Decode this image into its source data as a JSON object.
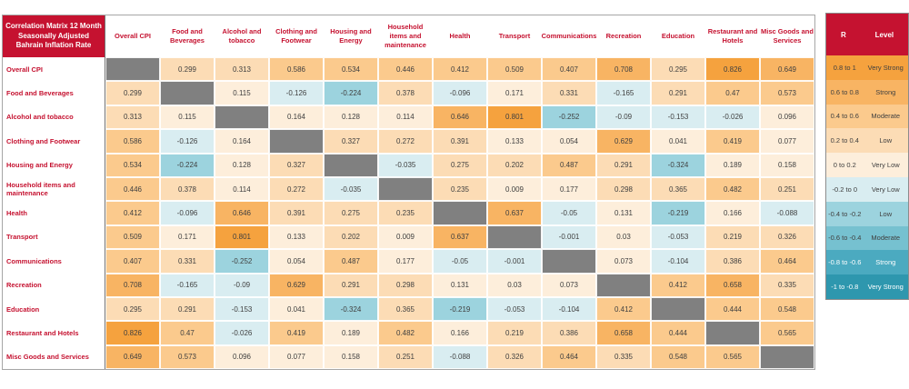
{
  "chart_data": {
    "type": "heatmap",
    "title": "Correlation Matrix 12 Month Seasonally Adjusted Bahrain Inflation Rate",
    "categories": [
      "Overall CPI",
      "Food and Beverages",
      "Alcohol and tobacco",
      "Clothing and Footwear",
      "Housing and Energy",
      "Household items and maintenance",
      "Health",
      "Transport",
      "Communications",
      "Recreation",
      "Education",
      "Restaurant and Hotels",
      "Misc Goods and Services"
    ],
    "matrix": [
      [
        null,
        0.299,
        0.313,
        0.586,
        0.534,
        0.446,
        0.412,
        0.509,
        0.407,
        0.708,
        0.295,
        0.826,
        0.649
      ],
      [
        0.299,
        null,
        0.115,
        -0.126,
        -0.224,
        0.378,
        -0.096,
        0.171,
        0.331,
        -0.165,
        0.291,
        0.47,
        0.573
      ],
      [
        0.313,
        0.115,
        null,
        0.164,
        0.128,
        0.114,
        0.646,
        0.801,
        -0.252,
        -0.09,
        -0.153,
        -0.026,
        0.096
      ],
      [
        0.586,
        -0.126,
        0.164,
        null,
        0.327,
        0.272,
        0.391,
        0.133,
        0.054,
        0.629,
        0.041,
        0.419,
        0.077
      ],
      [
        0.534,
        -0.224,
        0.128,
        0.327,
        null,
        -0.035,
        0.275,
        0.202,
        0.487,
        0.291,
        -0.324,
        0.189,
        0.158
      ],
      [
        0.446,
        0.378,
        0.114,
        0.272,
        -0.035,
        null,
        0.235,
        0.009,
        0.177,
        0.298,
        0.365,
        0.482,
        0.251
      ],
      [
        0.412,
        -0.096,
        0.646,
        0.391,
        0.275,
        0.235,
        null,
        0.637,
        -0.05,
        0.131,
        -0.219,
        0.166,
        -0.088
      ],
      [
        0.509,
        0.171,
        0.801,
        0.133,
        0.202,
        0.009,
        0.637,
        null,
        -0.001,
        0.03,
        -0.053,
        0.219,
        0.326
      ],
      [
        0.407,
        0.331,
        -0.252,
        0.054,
        0.487,
        0.177,
        -0.05,
        -0.001,
        null,
        0.073,
        -0.104,
        0.386,
        0.464
      ],
      [
        0.708,
        -0.165,
        -0.09,
        0.629,
        0.291,
        0.298,
        0.131,
        0.03,
        0.073,
        null,
        0.412,
        0.658,
        0.335
      ],
      [
        0.295,
        0.291,
        -0.153,
        0.041,
        -0.324,
        0.365,
        -0.219,
        -0.053,
        -0.104,
        0.412,
        null,
        0.444,
        0.548
      ],
      [
        0.826,
        0.47,
        -0.026,
        0.419,
        0.189,
        0.482,
        0.166,
        0.219,
        0.386,
        0.658,
        0.444,
        null,
        0.565
      ],
      [
        0.649,
        0.573,
        0.096,
        0.077,
        0.158,
        0.251,
        -0.088,
        0.326,
        0.464,
        0.335,
        0.548,
        0.565,
        null
      ]
    ],
    "legend": {
      "headers": [
        "R",
        "Level"
      ],
      "rows": [
        {
          "range": "0.8 to 1",
          "level": "Very Strong",
          "tier": "pos5"
        },
        {
          "range": "0.6 to 0.8",
          "level": "Strong",
          "tier": "pos4"
        },
        {
          "range": "0.4 to 0.6",
          "level": "Moderate",
          "tier": "pos3"
        },
        {
          "range": "0.2 to 0.4",
          "level": "Low",
          "tier": "pos2"
        },
        {
          "range": "0 to 0.2",
          "level": "Very Low",
          "tier": "pos1"
        },
        {
          "range": "-0.2 to 0",
          "level": "Very Low",
          "tier": "neg1"
        },
        {
          "range": "-0.4 to -0.2",
          "level": "Low",
          "tier": "neg2"
        },
        {
          "range": "-0.6 to -0.4",
          "level": "Moderate",
          "tier": "neg3"
        },
        {
          "range": "-0.8 to -0.6",
          "level": "Strong",
          "tier": "neg4"
        },
        {
          "range": "-1 to -0.8",
          "level": "Very Strong",
          "tier": "neg5"
        }
      ]
    }
  },
  "colors": {
    "accent_red": "#C51230",
    "diagonal_gray": "#808080",
    "value_text": "#404040",
    "tiers": {
      "pos5": "#F5A23E",
      "pos4": "#F8B463",
      "pos3": "#FBCA8D",
      "pos2": "#FCDCB5",
      "pos1": "#FDEEDB",
      "neg1": "#D9EDF1",
      "neg2": "#9CD3DE",
      "neg3": "#76C1D0",
      "neg4": "#4BAAC0",
      "neg5": "#2E97AE"
    }
  }
}
